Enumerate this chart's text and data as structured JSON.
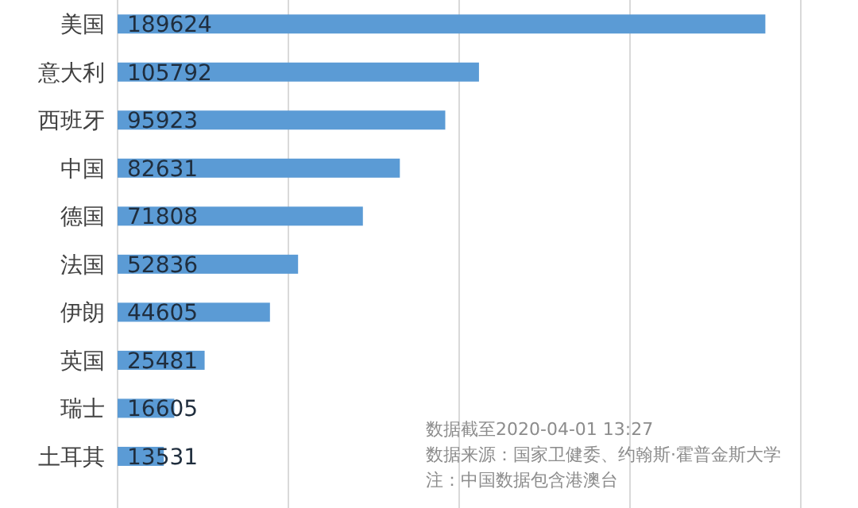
{
  "chart_data": {
    "type": "bar",
    "orientation": "horizontal",
    "categories": [
      "美国",
      "意大利",
      "西班牙",
      "中国",
      "德国",
      "法国",
      "伊朗",
      "英国",
      "瑞士",
      "土耳其"
    ],
    "values": [
      189624,
      105792,
      95923,
      82631,
      71808,
      52836,
      44605,
      25481,
      16605,
      13531
    ],
    "color": "#5b9bd5",
    "data_labels": true,
    "grid": "x",
    "xlim": [
      0,
      200000
    ],
    "xticks": [
      {
        "value": 0,
        "label": null
      },
      {
        "value": 50000,
        "label": null
      },
      {
        "value": 100000,
        "label": null
      },
      {
        "value": 150000,
        "label": null
      },
      {
        "value": 200000,
        "label": null
      }
    ],
    "annotations": [
      "数据截至2020-04-01 13:27",
      "数据来源：国家卫健委、约翰斯·霍普金斯大学",
      "注：中国数据包含港澳台"
    ]
  }
}
